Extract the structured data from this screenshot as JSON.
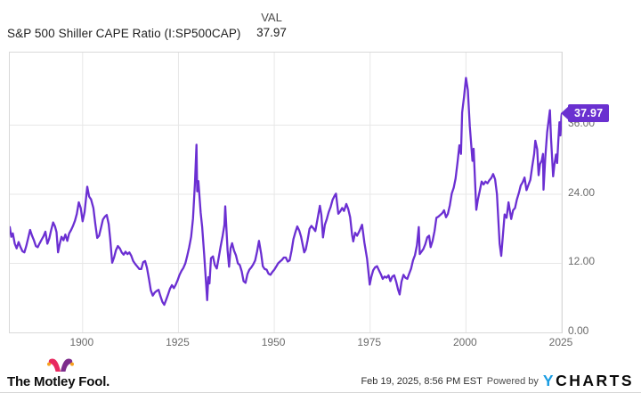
{
  "header": {
    "title": "S&P 500 Shiller CAPE Ratio (I:SP500CAP)",
    "val_label": "VAL",
    "val_value": "37.97"
  },
  "badge": {
    "value": "37.97",
    "color": "#6a30d0"
  },
  "chart_data": {
    "type": "line",
    "title": "S&P 500 Shiller CAPE Ratio",
    "series_name": "S&P 500 Shiller CAPE Ratio (I:SP500CAP)",
    "line_color": "#6b2fd2",
    "grid": true,
    "legend": "none",
    "xlim": [
      1881,
      2025
    ],
    "ylim": [
      0,
      48.6
    ],
    "x_ticks": [
      1900,
      1925,
      1950,
      1975,
      2000,
      2025
    ],
    "y_ticks": [
      0,
      12,
      24,
      36
    ],
    "y_tick_labels": [
      "0.00",
      "12.00",
      "24.00",
      "36.00"
    ],
    "last_value": 37.97,
    "points": [
      [
        1881,
        18.3
      ],
      [
        1881.4,
        16.6
      ],
      [
        1881.8,
        17.2
      ],
      [
        1882.3,
        15.4
      ],
      [
        1882.8,
        14.6
      ],
      [
        1883.3,
        15.7
      ],
      [
        1883.8,
        14.8
      ],
      [
        1884.3,
        14.1
      ],
      [
        1884.8,
        13.9
      ],
      [
        1885.3,
        15.0
      ],
      [
        1885.8,
        16.4
      ],
      [
        1886.3,
        17.8
      ],
      [
        1886.8,
        16.8
      ],
      [
        1887.3,
        16.0
      ],
      [
        1887.8,
        15.0
      ],
      [
        1888.3,
        14.8
      ],
      [
        1888.8,
        15.5
      ],
      [
        1889.3,
        16.1
      ],
      [
        1889.8,
        16.7
      ],
      [
        1890.3,
        17.5
      ],
      [
        1890.8,
        15.4
      ],
      [
        1891.3,
        16.3
      ],
      [
        1891.8,
        17.8
      ],
      [
        1892.3,
        19.1
      ],
      [
        1892.8,
        18.4
      ],
      [
        1893.2,
        17.4
      ],
      [
        1893.6,
        13.9
      ],
      [
        1894,
        15.3
      ],
      [
        1894.5,
        16.6
      ],
      [
        1895,
        16.0
      ],
      [
        1895.5,
        17.0
      ],
      [
        1896,
        15.9
      ],
      [
        1896.5,
        17.2
      ],
      [
        1897,
        17.8
      ],
      [
        1897.5,
        18.5
      ],
      [
        1898,
        19.4
      ],
      [
        1898.5,
        20.6
      ],
      [
        1899,
        22.6
      ],
      [
        1899.5,
        21.6
      ],
      [
        1900,
        19.3
      ],
      [
        1900.5,
        20.9
      ],
      [
        1901.2,
        25.3
      ],
      [
        1901.7,
        23.6
      ],
      [
        1902.2,
        23.1
      ],
      [
        1902.8,
        21.6
      ],
      [
        1903.3,
        18.9
      ],
      [
        1903.8,
        16.4
      ],
      [
        1904.3,
        16.8
      ],
      [
        1904.8,
        18.2
      ],
      [
        1905.3,
        19.6
      ],
      [
        1905.8,
        20.1
      ],
      [
        1906.3,
        20.4
      ],
      [
        1906.8,
        18.8
      ],
      [
        1907.2,
        16.2
      ],
      [
        1907.7,
        12.1
      ],
      [
        1908.2,
        13.0
      ],
      [
        1908.7,
        14.3
      ],
      [
        1909.2,
        15.0
      ],
      [
        1909.7,
        14.6
      ],
      [
        1910.2,
        13.9
      ],
      [
        1910.7,
        13.5
      ],
      [
        1911.2,
        14.0
      ],
      [
        1911.7,
        13.6
      ],
      [
        1912.2,
        13.9
      ],
      [
        1912.7,
        13.3
      ],
      [
        1913.2,
        12.4
      ],
      [
        1913.7,
        11.9
      ],
      [
        1914.2,
        11.5
      ],
      [
        1914.8,
        11.0
      ],
      [
        1915.3,
        11.0
      ],
      [
        1915.8,
        12.2
      ],
      [
        1916.3,
        12.4
      ],
      [
        1916.8,
        11.2
      ],
      [
        1917.3,
        9.3
      ],
      [
        1917.8,
        7.3
      ],
      [
        1918.3,
        6.4
      ],
      [
        1918.8,
        6.9
      ],
      [
        1919.3,
        7.2
      ],
      [
        1919.8,
        7.4
      ],
      [
        1920.3,
        6.3
      ],
      [
        1920.8,
        5.3
      ],
      [
        1921.3,
        4.8
      ],
      [
        1921.8,
        5.7
      ],
      [
        1922.3,
        6.6
      ],
      [
        1922.8,
        7.6
      ],
      [
        1923.3,
        8.2
      ],
      [
        1923.8,
        7.7
      ],
      [
        1924.3,
        8.3
      ],
      [
        1924.8,
        9.1
      ],
      [
        1925.3,
        10.0
      ],
      [
        1925.8,
        10.7
      ],
      [
        1926.3,
        11.2
      ],
      [
        1926.8,
        12.0
      ],
      [
        1927.3,
        13.3
      ],
      [
        1927.8,
        14.8
      ],
      [
        1928.3,
        16.6
      ],
      [
        1928.8,
        19.8
      ],
      [
        1929.3,
        26.0
      ],
      [
        1929.7,
        32.6
      ],
      [
        1929.9,
        24.5
      ],
      [
        1930.2,
        26.3
      ],
      [
        1930.8,
        20.8
      ],
      [
        1931.2,
        18.3
      ],
      [
        1931.7,
        13.6
      ],
      [
        1932.2,
        8.7
      ],
      [
        1932.5,
        5.6
      ],
      [
        1932.8,
        9.6
      ],
      [
        1933.1,
        8.5
      ],
      [
        1933.5,
        12.9
      ],
      [
        1934,
        13.2
      ],
      [
        1934.5,
        11.7
      ],
      [
        1935,
        11.1
      ],
      [
        1935.5,
        13.0
      ],
      [
        1936,
        14.9
      ],
      [
        1936.5,
        16.7
      ],
      [
        1937,
        18.7
      ],
      [
        1937.2,
        21.9
      ],
      [
        1937.8,
        14.3
      ],
      [
        1938.2,
        11.4
      ],
      [
        1938.6,
        14.6
      ],
      [
        1939,
        15.5
      ],
      [
        1939.5,
        14.2
      ],
      [
        1940,
        13.4
      ],
      [
        1940.5,
        12.0
      ],
      [
        1941,
        11.7
      ],
      [
        1941.5,
        10.6
      ],
      [
        1942,
        8.9
      ],
      [
        1942.5,
        8.6
      ],
      [
        1943,
        10.1
      ],
      [
        1943.5,
        10.9
      ],
      [
        1944,
        11.3
      ],
      [
        1944.5,
        11.8
      ],
      [
        1945,
        12.5
      ],
      [
        1945.5,
        14.0
      ],
      [
        1946,
        15.9
      ],
      [
        1946.6,
        13.6
      ],
      [
        1947,
        11.5
      ],
      [
        1947.5,
        11.0
      ],
      [
        1948,
        10.9
      ],
      [
        1948.5,
        10.2
      ],
      [
        1949,
        10.0
      ],
      [
        1949.5,
        10.5
      ],
      [
        1950,
        10.9
      ],
      [
        1950.5,
        11.4
      ],
      [
        1951,
        12.0
      ],
      [
        1951.5,
        12.3
      ],
      [
        1952,
        12.6
      ],
      [
        1952.5,
        13.0
      ],
      [
        1953,
        13.0
      ],
      [
        1953.5,
        12.3
      ],
      [
        1954,
        12.5
      ],
      [
        1954.5,
        14.2
      ],
      [
        1955,
        16.2
      ],
      [
        1955.5,
        17.4
      ],
      [
        1956,
        18.4
      ],
      [
        1956.5,
        17.7
      ],
      [
        1957,
        16.6
      ],
      [
        1957.8,
        13.9
      ],
      [
        1958.2,
        14.4
      ],
      [
        1958.7,
        16.0
      ],
      [
        1959.2,
        18.0
      ],
      [
        1959.7,
        18.5
      ],
      [
        1960.2,
        18.1
      ],
      [
        1960.7,
        17.6
      ],
      [
        1961.2,
        19.4
      ],
      [
        1961.9,
        22.0
      ],
      [
        1962.3,
        20.4
      ],
      [
        1962.7,
        16.5
      ],
      [
        1963.2,
        18.7
      ],
      [
        1963.7,
        19.7
      ],
      [
        1964.2,
        20.9
      ],
      [
        1964.7,
        21.8
      ],
      [
        1965.2,
        23.0
      ],
      [
        1965.8,
        23.8
      ],
      [
        1966.1,
        24.1
      ],
      [
        1966.7,
        20.6
      ],
      [
        1967.2,
        21.0
      ],
      [
        1967.7,
        21.6
      ],
      [
        1968.2,
        21.1
      ],
      [
        1968.8,
        22.3
      ],
      [
        1969.3,
        21.4
      ],
      [
        1969.8,
        20.0
      ],
      [
        1970.3,
        16.9
      ],
      [
        1970.6,
        15.8
      ],
      [
        1971.1,
        17.3
      ],
      [
        1971.6,
        16.8
      ],
      [
        1972.2,
        17.6
      ],
      [
        1972.9,
        18.7
      ],
      [
        1973.5,
        15.6
      ],
      [
        1974.2,
        12.8
      ],
      [
        1974.9,
        8.3
      ],
      [
        1975.3,
        9.6
      ],
      [
        1975.8,
        10.8
      ],
      [
        1976.3,
        11.3
      ],
      [
        1976.8,
        11.5
      ],
      [
        1977.3,
        10.8
      ],
      [
        1977.8,
        10.1
      ],
      [
        1978.3,
        9.3
      ],
      [
        1978.8,
        9.7
      ],
      [
        1979.3,
        9.5
      ],
      [
        1979.8,
        9.9
      ],
      [
        1980.3,
        8.9
      ],
      [
        1980.8,
        9.7
      ],
      [
        1981.3,
        9.9
      ],
      [
        1981.8,
        8.8
      ],
      [
        1982.3,
        7.4
      ],
      [
        1982.7,
        6.6
      ],
      [
        1983.2,
        8.8
      ],
      [
        1983.7,
        10.0
      ],
      [
        1984.2,
        9.5
      ],
      [
        1984.7,
        9.3
      ],
      [
        1985.2,
        10.2
      ],
      [
        1985.7,
        11.1
      ],
      [
        1986.2,
        12.5
      ],
      [
        1986.7,
        13.4
      ],
      [
        1987.2,
        15.1
      ],
      [
        1987.7,
        18.3
      ],
      [
        1987.95,
        13.6
      ],
      [
        1988.4,
        14.0
      ],
      [
        1988.9,
        14.5
      ],
      [
        1989.4,
        15.3
      ],
      [
        1989.9,
        16.5
      ],
      [
        1990.4,
        16.8
      ],
      [
        1990.8,
        14.8
      ],
      [
        1991.3,
        15.9
      ],
      [
        1991.8,
        17.6
      ],
      [
        1992.3,
        19.9
      ],
      [
        1992.8,
        20.1
      ],
      [
        1993.3,
        20.4
      ],
      [
        1993.8,
        20.7
      ],
      [
        1994.3,
        21.2
      ],
      [
        1994.8,
        20.0
      ],
      [
        1995.3,
        20.6
      ],
      [
        1995.8,
        22.1
      ],
      [
        1996.3,
        24.1
      ],
      [
        1996.8,
        25.1
      ],
      [
        1997.3,
        26.7
      ],
      [
        1997.8,
        29.5
      ],
      [
        1998.3,
        32.5
      ],
      [
        1998.7,
        31.0
      ],
      [
        1999,
        38.2
      ],
      [
        1999.5,
        40.9
      ],
      [
        2000,
        44.2
      ],
      [
        2000.5,
        42.1
      ],
      [
        2001,
        35.8
      ],
      [
        2001.7,
        29.8
      ],
      [
        2002,
        31.9
      ],
      [
        2002.7,
        21.3
      ],
      [
        2003.1,
        23.0
      ],
      [
        2003.6,
        24.6
      ],
      [
        2004.1,
        26.2
      ],
      [
        2004.6,
        25.7
      ],
      [
        2005.1,
        26.2
      ],
      [
        2005.6,
        25.9
      ],
      [
        2006.1,
        26.4
      ],
      [
        2006.6,
        26.8
      ],
      [
        2007.1,
        27.5
      ],
      [
        2007.6,
        26.6
      ],
      [
        2008.1,
        24.0
      ],
      [
        2008.8,
        15.4
      ],
      [
        2009.2,
        13.3
      ],
      [
        2009.6,
        16.5
      ],
      [
        2010.1,
        20.5
      ],
      [
        2010.6,
        19.9
      ],
      [
        2011.1,
        22.6
      ],
      [
        2011.8,
        19.7
      ],
      [
        2012.3,
        21.2
      ],
      [
        2012.8,
        21.6
      ],
      [
        2013.3,
        23.1
      ],
      [
        2013.8,
        24.2
      ],
      [
        2014.3,
        25.5
      ],
      [
        2014.8,
        26.1
      ],
      [
        2015.3,
        26.9
      ],
      [
        2015.8,
        24.7
      ],
      [
        2016.3,
        25.6
      ],
      [
        2016.8,
        26.5
      ],
      [
        2017.3,
        28.8
      ],
      [
        2017.8,
        31.0
      ],
      [
        2018.1,
        33.3
      ],
      [
        2018.6,
        31.8
      ],
      [
        2018.95,
        27.3
      ],
      [
        2019.3,
        29.2
      ],
      [
        2019.8,
        29.9
      ],
      [
        2020.1,
        31.0
      ],
      [
        2020.25,
        24.8
      ],
      [
        2020.7,
        30.4
      ],
      [
        2021.2,
        34.8
      ],
      [
        2021.9,
        38.6
      ],
      [
        2022.2,
        33.8
      ],
      [
        2022.75,
        27.1
      ],
      [
        2023.1,
        29.2
      ],
      [
        2023.5,
        30.9
      ],
      [
        2023.8,
        29.4
      ],
      [
        2024.1,
        33.2
      ],
      [
        2024.4,
        36.5
      ],
      [
        2024.65,
        34.2
      ],
      [
        2024.9,
        37.5
      ],
      [
        2025.1,
        37.97
      ]
    ]
  },
  "footer": {
    "logo_text": "The Motley Fool.",
    "timestamp": "Feb 19, 2025, 8:56 PM EST",
    "powered_by": "Powered by",
    "brand_y": "Y",
    "brand_rest": "CHARTS",
    "brand_blue": "#1b9de2"
  }
}
